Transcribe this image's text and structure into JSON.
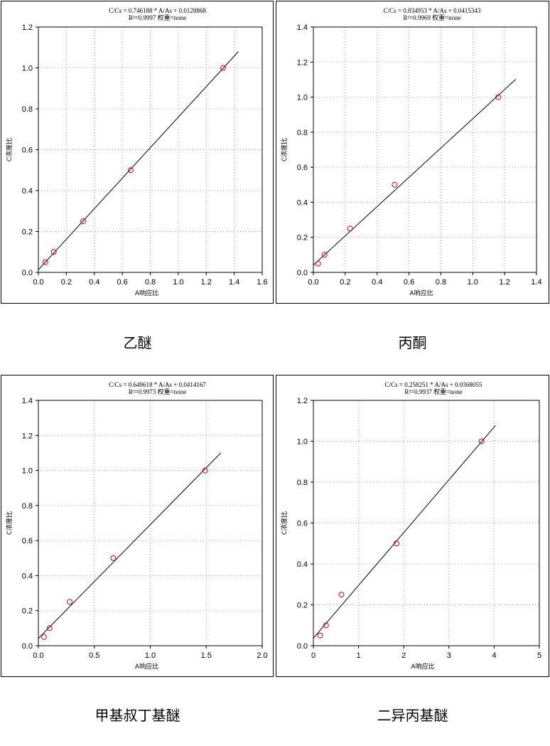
{
  "chart_data": [
    {
      "type": "scatter",
      "equation": "C/Cs = 0.746188 * A/As + 0.0128868",
      "stats": "R²=0.9997 权重=none",
      "xlabel": "A响应比",
      "ylabel": "C浓度比",
      "xlim": [
        0,
        1.6
      ],
      "ylim": [
        0,
        1.2
      ],
      "xticks": [
        0,
        0.2,
        0.4,
        0.6,
        0.8,
        1.0,
        1.2,
        1.4,
        1.6
      ],
      "xtick_labels": [
        "0.0",
        "0.2",
        "0.4",
        "0.6",
        "0.8",
        "1.0",
        "1.2",
        "1.4",
        "1.6"
      ],
      "yticks": [
        0,
        0.2,
        0.4,
        0.6,
        0.8,
        1.0,
        1.2
      ],
      "ytick_labels": [
        "0.0",
        "0.2",
        "0.4",
        "0.6",
        "0.8",
        "1.0",
        "1.2"
      ],
      "points": [
        [
          0.05,
          0.05
        ],
        [
          0.11,
          0.1
        ],
        [
          0.32,
          0.25
        ],
        [
          0.66,
          0.5
        ],
        [
          1.32,
          1.0
        ]
      ],
      "fit": {
        "slope": 0.746188,
        "intercept": 0.0128868,
        "x_range": [
          0.0,
          1.43
        ]
      },
      "caption": "乙醚"
    },
    {
      "type": "scatter",
      "equation": "C/Cs = 0.834953 * A/As + 0.0415343",
      "stats": "R²=0.9969 权重=none",
      "xlabel": "A响应比",
      "ylabel": "C浓度比",
      "xlim": [
        0,
        1.4
      ],
      "ylim": [
        0,
        1.4
      ],
      "xticks": [
        0,
        0.2,
        0.4,
        0.6,
        0.8,
        1.0,
        1.2,
        1.4
      ],
      "xtick_labels": [
        "0.0",
        "0.2",
        "0.4",
        "0.6",
        "0.8",
        "1.0",
        "1.2",
        "1.4"
      ],
      "yticks": [
        0,
        0.2,
        0.4,
        0.6,
        0.8,
        1.0,
        1.2,
        1.4
      ],
      "ytick_labels": [
        "0.0",
        "0.2",
        "0.4",
        "0.6",
        "0.8",
        "1.0",
        "1.2",
        "1.4"
      ],
      "points": [
        [
          0.03,
          0.05
        ],
        [
          0.07,
          0.1
        ],
        [
          0.23,
          0.25
        ],
        [
          0.51,
          0.5
        ],
        [
          1.16,
          1.0
        ]
      ],
      "fit": {
        "slope": 0.834953,
        "intercept": 0.0415343,
        "x_range": [
          0.0,
          1.27
        ]
      },
      "caption": "丙酮"
    },
    {
      "type": "scatter",
      "equation": "C/Cs = 0.649618 * A/As + 0.0414167",
      "stats": "R²=0.9973 权重=none",
      "xlabel": "A响应比",
      "ylabel": "C浓度比",
      "xlim": [
        0,
        2.0
      ],
      "ylim": [
        0,
        1.4
      ],
      "xticks": [
        0,
        0.5,
        1.0,
        1.5,
        2.0
      ],
      "xtick_labels": [
        "0.0",
        "0.5",
        "1.0",
        "1.5",
        "2.0"
      ],
      "yticks": [
        0,
        0.2,
        0.4,
        0.6,
        0.8,
        1.0,
        1.2,
        1.4
      ],
      "ytick_labels": [
        "0.0",
        "0.2",
        "0.4",
        "0.6",
        "0.8",
        "1.0",
        "1.2",
        "1.4"
      ],
      "points": [
        [
          0.05,
          0.05
        ],
        [
          0.1,
          0.1
        ],
        [
          0.28,
          0.25
        ],
        [
          0.67,
          0.5
        ],
        [
          1.49,
          1.0
        ]
      ],
      "fit": {
        "slope": 0.649618,
        "intercept": 0.0414167,
        "x_range": [
          0.0,
          1.63
        ]
      },
      "caption": "甲基叔丁基醚"
    },
    {
      "type": "scatter",
      "equation": "C/Cs = 0.258251 * A/As + 0.0368055",
      "stats": "R²=0.9937 权重=none",
      "xlabel": "A响应比",
      "ylabel": "C浓度比",
      "xlim": [
        0,
        5
      ],
      "ylim": [
        0,
        1.2
      ],
      "xticks": [
        0,
        1,
        2,
        3,
        4,
        5
      ],
      "xtick_labels": [
        "0",
        "1",
        "2",
        "3",
        "4",
        "5"
      ],
      "yticks": [
        0,
        0.2,
        0.4,
        0.6,
        0.8,
        1.0,
        1.2
      ],
      "ytick_labels": [
        "0.0",
        "0.2",
        "0.4",
        "0.6",
        "0.8",
        "1.0",
        "1.2"
      ],
      "points": [
        [
          0.15,
          0.05
        ],
        [
          0.28,
          0.1
        ],
        [
          0.62,
          0.25
        ],
        [
          1.84,
          0.5
        ],
        [
          3.72,
          1.0
        ]
      ],
      "fit": {
        "slope": 0.258251,
        "intercept": 0.0368055,
        "x_range": [
          0.0,
          4.03
        ]
      },
      "caption": "二异丙基醚"
    }
  ]
}
